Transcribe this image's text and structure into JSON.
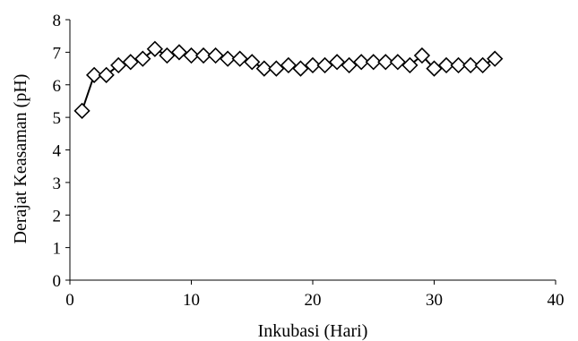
{
  "chart_data": {
    "type": "line",
    "title": "",
    "xlabel": "Inkubasi (Hari)",
    "ylabel": "Derajat Keasaman (pH)",
    "xlim": [
      0,
      40
    ],
    "ylim": [
      0,
      8
    ],
    "xticks": [
      0,
      10,
      20,
      30,
      40
    ],
    "yticks": [
      0,
      1,
      2,
      3,
      4,
      5,
      6,
      7,
      8
    ],
    "grid": false,
    "legend": "none",
    "marker": "diamond-open",
    "line_color": "#000000",
    "marker_fill": "#ffffff",
    "series": [
      {
        "x": [
          1,
          2,
          3,
          4,
          5,
          6,
          7,
          8,
          9,
          10,
          11,
          12,
          13,
          14,
          15,
          16,
          17,
          18,
          19,
          20,
          21,
          22,
          23,
          24,
          25,
          26,
          27,
          28,
          29,
          30,
          31,
          32,
          33,
          34,
          35
        ],
        "y": [
          5.2,
          6.3,
          6.3,
          6.6,
          6.7,
          6.8,
          7.1,
          6.9,
          7.0,
          6.9,
          6.9,
          6.9,
          6.8,
          6.8,
          6.7,
          6.5,
          6.5,
          6.6,
          6.5,
          6.6,
          6.6,
          6.7,
          6.6,
          6.7,
          6.7,
          6.7,
          6.7,
          6.6,
          6.9,
          6.5,
          6.6,
          6.6,
          6.6,
          6.6,
          6.8
        ]
      }
    ]
  }
}
